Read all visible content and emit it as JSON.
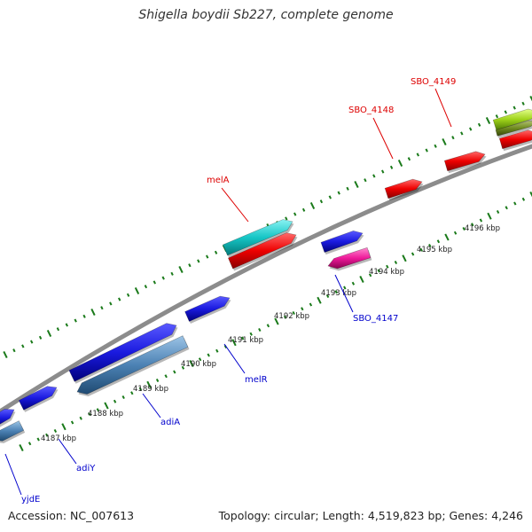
{
  "title": "Shigella boydii Sb227, complete genome",
  "footer": {
    "accession": "Accession: NC_007613",
    "topology": "Topology: circular; Length: 4,519,823 bp; Genes: 4,246"
  },
  "colors": {
    "backbone": "#8c8c8c",
    "tick": "#1a7a1a",
    "label_top": "#dd0000",
    "label_bottom": "#0000cc"
  },
  "scale_labels": [
    "4187 kbp",
    "4188 kbp",
    "4189 kbp",
    "4190 kbp",
    "4191 kbp",
    "4192 kbp",
    "4193 kbp",
    "4194 kbp",
    "4195 kbp",
    "4196 kbp"
  ],
  "gene_labels": [
    "yjdE",
    "adiY",
    "adiA",
    "melR",
    "SBO_4147",
    "melA",
    "SBO_4148",
    "SBO_4149"
  ]
}
